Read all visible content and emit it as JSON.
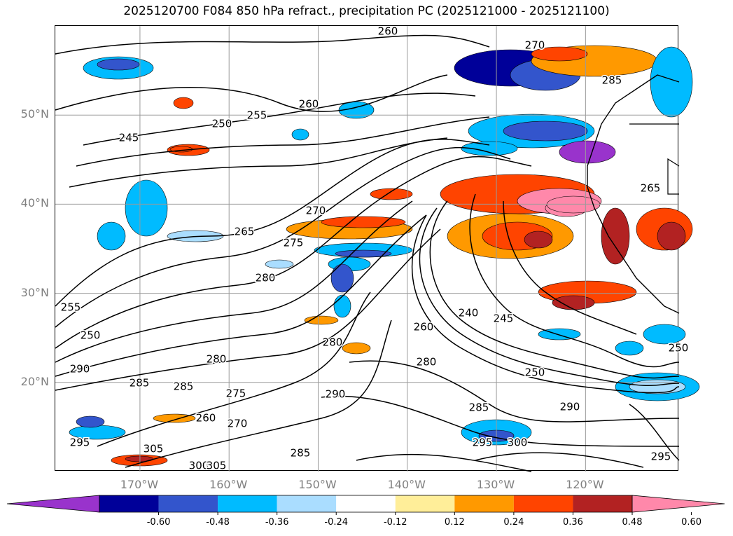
{
  "title": "2025120700 F084 850 hPa refract., precipitation PC (2025121000 - 2025121100)",
  "map": {
    "lat_ticks": [
      {
        "lat": 50,
        "label": "50°N"
      },
      {
        "lat": 40,
        "label": "40°N"
      },
      {
        "lat": 30,
        "label": "30°N"
      },
      {
        "lat": 20,
        "label": "20°N"
      }
    ],
    "lon_ticks": [
      {
        "lon": -170,
        "label": "170°W"
      },
      {
        "lon": -160,
        "label": "160°W"
      },
      {
        "lon": -150,
        "label": "150°W"
      },
      {
        "lon": -140,
        "label": "140°W"
      },
      {
        "lon": -130,
        "label": "130°W"
      },
      {
        "lon": -120,
        "label": "120°W"
      }
    ],
    "contour_labels": [
      "260",
      "270",
      "285",
      "260",
      "250",
      "255",
      "245",
      "270",
      "265",
      "275",
      "280",
      "255",
      "250",
      "290",
      "285",
      "285",
      "280",
      "275",
      "260",
      "270",
      "295",
      "305",
      "300",
      "285",
      "290",
      "280",
      "280",
      "260",
      "240",
      "245",
      "250",
      "285",
      "290",
      "295",
      "300",
      "305",
      "265",
      "250",
      "295"
    ]
  },
  "colorbar": {
    "colors": [
      "#9933cc",
      "#000099",
      "#3355cc",
      "#00bbff",
      "#aaddff",
      "#ffffff",
      "#ffee99",
      "#ff9900",
      "#ff4400",
      "#b22222",
      "#ff88aa"
    ],
    "tick_labels": [
      "-0.60",
      "-0.48",
      "-0.36",
      "-0.24",
      "-0.12",
      "0.12",
      "0.24",
      "0.36",
      "0.48",
      "0.60"
    ]
  }
}
